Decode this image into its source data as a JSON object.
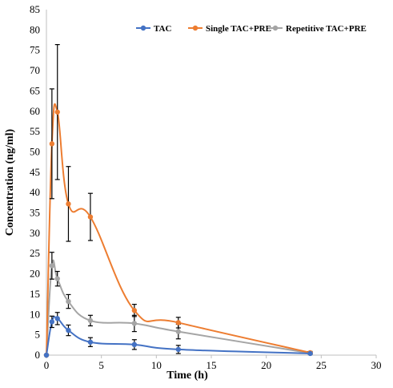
{
  "chart_data": {
    "type": "line",
    "title": "",
    "xlabel": "Time (h)",
    "ylabel": "Concentration (ng/ml)",
    "xlim": [
      0,
      30
    ],
    "ylim": [
      0,
      85
    ],
    "x_ticks": [
      0,
      5,
      10,
      15,
      20,
      25,
      30
    ],
    "y_ticks": [
      0,
      5,
      10,
      15,
      20,
      25,
      30,
      35,
      40,
      45,
      50,
      55,
      60,
      65,
      70,
      75,
      80,
      85
    ],
    "grid": false,
    "legend_position": "top-right",
    "series": [
      {
        "name": "TAC",
        "color": "#4472c4",
        "points": [
          {
            "x": 0,
            "y": 0,
            "err": 0
          },
          {
            "x": 0.5,
            "y": 8.2,
            "err": 1.4
          },
          {
            "x": 1,
            "y": 9.0,
            "err": 1.5
          },
          {
            "x": 2,
            "y": 6.1,
            "err": 1.3
          },
          {
            "x": 4,
            "y": 3.2,
            "err": 1.1
          },
          {
            "x": 8,
            "y": 2.6,
            "err": 1.2
          },
          {
            "x": 12,
            "y": 1.4,
            "err": 1.0
          },
          {
            "x": 24,
            "y": 0.4,
            "err": 0.2
          }
        ]
      },
      {
        "name": "Single TAC+PRE",
        "color": "#ed7d31",
        "points": [
          {
            "x": 0,
            "y": 0,
            "err": 0
          },
          {
            "x": 0.5,
            "y": 52.0,
            "err": 13.5
          },
          {
            "x": 1,
            "y": 59.8,
            "err": 16.6
          },
          {
            "x": 2,
            "y": 37.2,
            "err": 9.2
          },
          {
            "x": 4,
            "y": 34.0,
            "err": 5.8
          },
          {
            "x": 8,
            "y": 11.0,
            "err": 1.5
          },
          {
            "x": 12,
            "y": 8.0,
            "err": 1.3
          },
          {
            "x": 24,
            "y": 0.6,
            "err": 0.3
          }
        ]
      },
      {
        "name": "Repetitive TAC+PRE",
        "color": "#a5a5a5",
        "points": [
          {
            "x": 0,
            "y": 0,
            "err": 0
          },
          {
            "x": 0.5,
            "y": 22.0,
            "err": 3.3
          },
          {
            "x": 1,
            "y": 18.8,
            "err": 1.8
          },
          {
            "x": 2,
            "y": 13.2,
            "err": 1.7
          },
          {
            "x": 4,
            "y": 8.5,
            "err": 1.3
          },
          {
            "x": 8,
            "y": 7.8,
            "err": 2.0
          },
          {
            "x": 12,
            "y": 5.8,
            "err": 1.8
          },
          {
            "x": 24,
            "y": 0.5,
            "err": 0.2
          }
        ]
      }
    ]
  }
}
